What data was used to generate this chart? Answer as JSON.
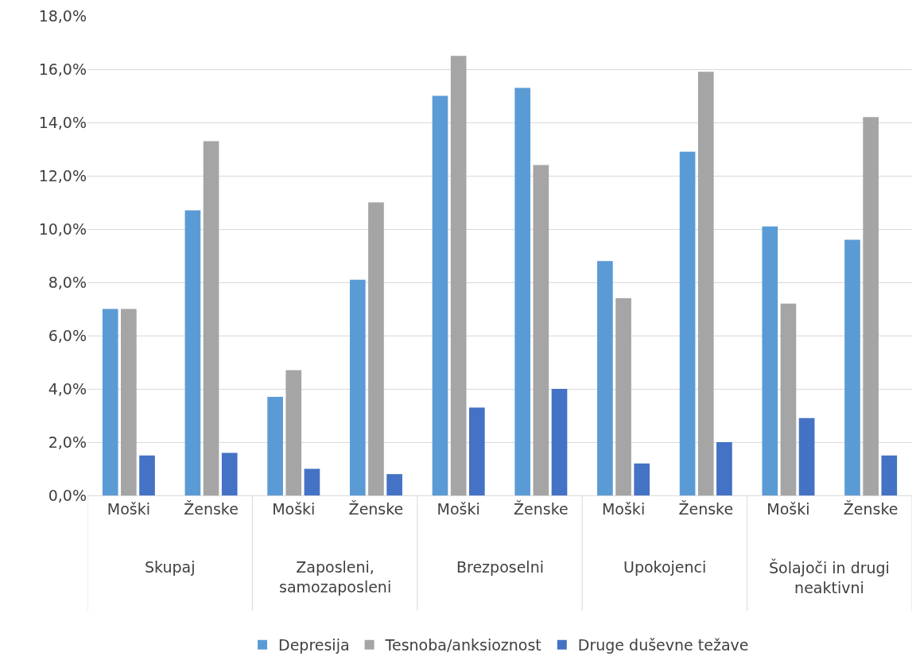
{
  "chart_data": {
    "type": "bar",
    "categories": [
      "Moški",
      "Ženske",
      "Moški",
      "Ženske",
      "Moški",
      "Ženske",
      "Moški",
      "Ženske",
      "Moški",
      "Ženske"
    ],
    "annotations": [
      "Skupaj",
      "Zaposleni, samozaposleni",
      "Brezposelni",
      "Upokojenci",
      "Šolajoči in drugi neaktivni"
    ],
    "series": [
      {
        "name": "Depresija",
        "color": "#5b9bd5",
        "values": [
          7.0,
          10.7,
          3.7,
          8.1,
          15.0,
          15.3,
          8.8,
          12.9,
          10.1,
          9.6
        ]
      },
      {
        "name": "Tesnoba/anksioznost",
        "color": "#a5a5a5",
        "values": [
          7.0,
          13.3,
          4.7,
          11.0,
          16.5,
          12.4,
          7.4,
          15.9,
          7.2,
          14.2
        ]
      },
      {
        "name": "Druge duševne težave",
        "color": "#4472c4",
        "values": [
          1.5,
          1.6,
          1.0,
          0.8,
          3.3,
          4.0,
          1.2,
          2.0,
          2.9,
          1.5
        ]
      }
    ],
    "ylim": [
      0,
      18
    ],
    "yticks": [
      {
        "value": 0,
        "label": "0,0%"
      },
      {
        "value": 2,
        "label": "2,0%"
      },
      {
        "value": 4,
        "label": "4,0%"
      },
      {
        "value": 6,
        "label": "6,0%"
      },
      {
        "value": 8,
        "label": "8,0%"
      },
      {
        "value": 10,
        "label": "10,0%"
      },
      {
        "value": 12,
        "label": "12,0%"
      },
      {
        "value": 14,
        "label": "14,0%"
      },
      {
        "value": 16,
        "label": "16,0%"
      },
      {
        "value": 18,
        "label": "18,0%"
      }
    ],
    "grid": "y",
    "legend": "bottom"
  }
}
